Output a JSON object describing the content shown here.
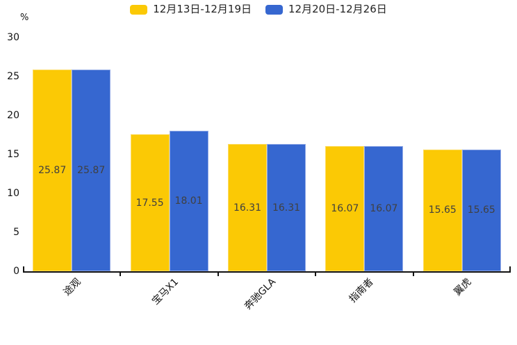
{
  "legend": {
    "items": [
      {
        "label": "12月13日-12月19日",
        "color": "#FBC905"
      },
      {
        "label": "12月20日-12月26日",
        "color": "#3667D0"
      }
    ]
  },
  "axis": {
    "unit_label": "%",
    "yticks": [
      0,
      5,
      10,
      15,
      20,
      25,
      30
    ]
  },
  "chart_data": {
    "type": "bar",
    "title": "",
    "xlabel": "",
    "ylabel": "%",
    "ylim": [
      0,
      30
    ],
    "yticks": [
      0,
      5,
      10,
      15,
      20,
      25,
      30
    ],
    "grid": false,
    "legend_position": "top-center",
    "value_labels": "inside-middle",
    "x_label_rotation_deg": -45,
    "categories": [
      "途观",
      "宝马X1",
      "奔驰GLA",
      "指南者",
      "翼虎"
    ],
    "series": [
      {
        "name": "12月13日-12月19日",
        "color": "#FBC905",
        "border_color": "#FDDC63",
        "values": [
          25.87,
          17.55,
          16.31,
          16.07,
          15.65
        ]
      },
      {
        "name": "12月20日-12月26日",
        "color": "#3667D0",
        "border_color": "#94ABE7",
        "values": [
          25.87,
          18.01,
          16.31,
          16.07,
          15.65
        ]
      }
    ]
  }
}
